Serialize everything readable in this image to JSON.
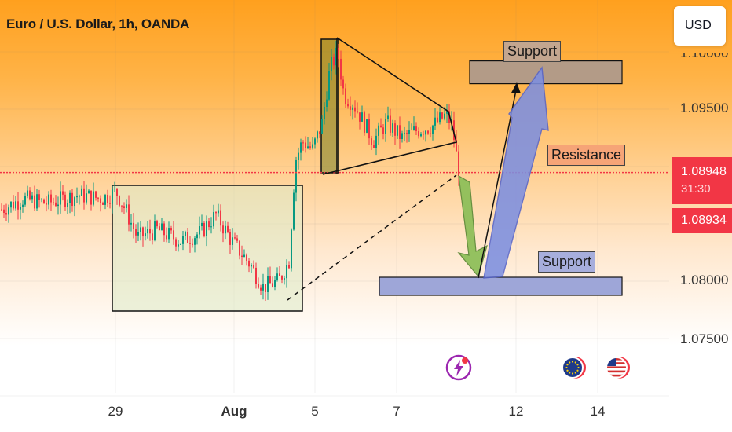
{
  "header": {
    "title": "Euro / U.S. Dollar, 1h, OANDA"
  },
  "toolbar": {
    "currency_label": "USD"
  },
  "price_scale": {
    "last_price": "1.08948",
    "countdown": "31:30",
    "bid_price": "1.08934"
  },
  "annotations": {
    "support_top": "Support",
    "resistance": "Resistance",
    "support_bottom": "Support"
  },
  "colors": {
    "up": "#089981",
    "down": "#f23645",
    "price_line": "#f23645",
    "support_top_fill": "#b39b87",
    "resistance_fill": "#f6a477",
    "support_bottom_fill": "#9ea6d8",
    "forecast_up_arrow": "#7d8fe0",
    "forecast_down_arrow": "#8fbf5a"
  },
  "icons": [
    "lightning-event-icon",
    "eu-flag-icon",
    "us-flag-icon"
  ],
  "chart_data": {
    "type": "candlestick",
    "title": "Euro / U.S. Dollar, 1h, OANDA",
    "xlabel": "",
    "ylabel": "",
    "x_ticks": [
      "29",
      "Aug",
      "5",
      "7",
      "12",
      "14"
    ],
    "y_ticks": [
      "1.07500",
      "1.08000",
      "1.09500"
    ],
    "y_top_partial_tick": "1.10000",
    "ylim": [
      1.073,
      1.1
    ],
    "last_price": 1.08948,
    "bid_price": 1.08934,
    "zones": [
      {
        "name": "Support",
        "y_low": 1.0975,
        "y_high": 1.099
      },
      {
        "name": "Resistance",
        "y": 1.0895
      },
      {
        "name": "Support",
        "y_low": 1.0793,
        "y_high": 1.0805
      }
    ],
    "price_path": [
      [
        0,
        1.0862
      ],
      [
        30,
        1.0872
      ],
      [
        60,
        1.0868
      ],
      [
        100,
        1.0875
      ],
      [
        130,
        1.0872
      ],
      [
        148,
        1.0878
      ],
      [
        160,
        1.0862
      ],
      [
        175,
        1.0838
      ],
      [
        200,
        1.0845
      ],
      [
        230,
        1.0835
      ],
      [
        255,
        1.0842
      ],
      [
        275,
        1.0858
      ],
      [
        295,
        1.0835
      ],
      [
        318,
        1.0815
      ],
      [
        335,
        1.0795
      ],
      [
        355,
        1.08
      ],
      [
        368,
        1.0818
      ],
      [
        376,
        1.0905
      ],
      [
        385,
        1.0922
      ],
      [
        398,
        1.0915
      ],
      [
        410,
        1.0938
      ],
      [
        420,
        1.0985
      ],
      [
        430,
        1.1
      ],
      [
        438,
        1.0962
      ],
      [
        450,
        1.0955
      ],
      [
        462,
        1.094
      ],
      [
        475,
        1.0922
      ],
      [
        492,
        1.0938
      ],
      [
        512,
        1.0925
      ],
      [
        532,
        1.0932
      ],
      [
        550,
        1.0935
      ],
      [
        568,
        1.0945
      ],
      [
        576,
        1.0935
      ],
      [
        582,
        1.0905
      ],
      [
        585,
        1.0895
      ]
    ]
  }
}
